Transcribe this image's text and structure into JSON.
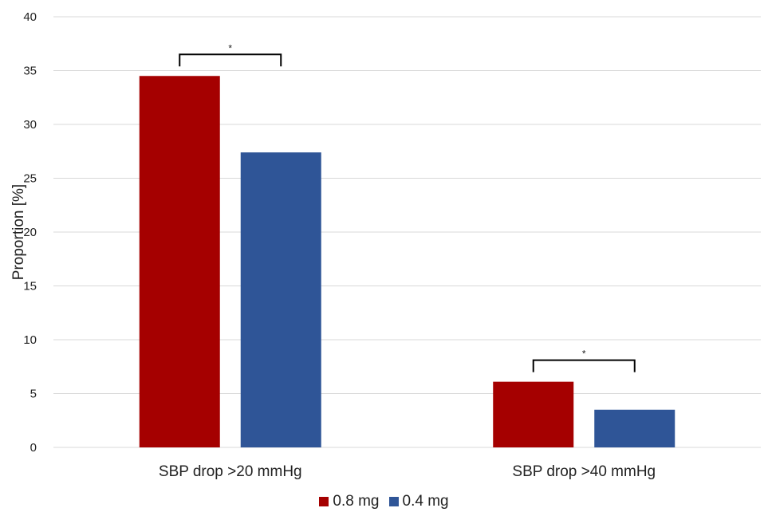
{
  "chart_data": {
    "type": "bar",
    "categories": [
      "SBP drop >20 mmHg",
      "SBP drop >40 mmHg"
    ],
    "series": [
      {
        "name": "0.8 mg",
        "values": [
          34.5,
          6.1
        ],
        "color": "#a50000"
      },
      {
        "name": "0.4 mg",
        "values": [
          27.4,
          3.5
        ],
        "color": "#2f5597"
      }
    ],
    "ylabel": "Proportion [%]",
    "xlabel": "",
    "ylim": [
      0,
      40
    ],
    "yticks": [
      0,
      5,
      10,
      15,
      20,
      25,
      30,
      35,
      40
    ],
    "grid": true,
    "legend_position": "bottom",
    "annotations": [
      {
        "category": "SBP drop >20 mmHg",
        "text": "*"
      },
      {
        "category": "SBP drop >40 mmHg",
        "text": "*"
      }
    ]
  }
}
